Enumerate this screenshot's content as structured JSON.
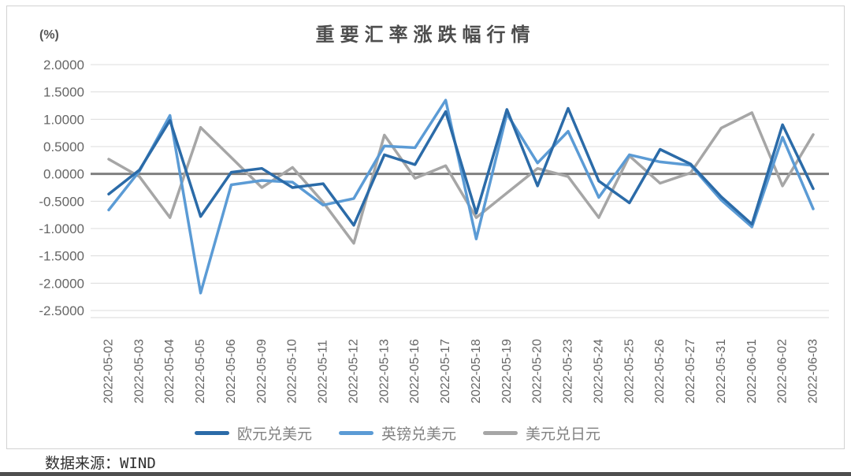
{
  "chart": {
    "title": "重要汇率涨跌幅行情",
    "unit_label": "(%)"
  },
  "footer": {
    "source_text": "数据来源：WIND"
  },
  "chart_data": {
    "type": "line",
    "title": "重要汇率涨跌幅行情",
    "xlabel": "",
    "ylabel": "(%)",
    "ylim": [
      -2.5,
      2.0
    ],
    "ytick_step": 0.5,
    "ytick_labels": [
      "2.0000",
      "1.5000",
      "1.0000",
      "0.5000",
      "0.0000",
      "-0.5000",
      "-1.0000",
      "-1.5000",
      "-2.0000",
      "-2.5000"
    ],
    "grid": true,
    "zero_line": true,
    "legend_position": "bottom",
    "grid_color": "#dcdcdc",
    "axis_line_color": "#d9d9d9",
    "zero_line_color": "#7f7f7f",
    "tick_label_color": "#666666",
    "categories": [
      "2022-05-02",
      "2022-05-03",
      "2022-05-04",
      "2022-05-05",
      "2022-05-06",
      "2022-05-09",
      "2022-05-10",
      "2022-05-11",
      "2022-05-12",
      "2022-05-13",
      "2022-05-16",
      "2022-05-17",
      "2022-05-18",
      "2022-05-19",
      "2022-05-20",
      "2022-05-23",
      "2022-05-24",
      "2022-05-25",
      "2022-05-26",
      "2022-05-27",
      "2022-05-31",
      "2022-06-01",
      "2022-06-02",
      "2022-06-03"
    ],
    "series": [
      {
        "name": "欧元兑美元",
        "color": "#2b6ba8",
        "values": [
          -0.37,
          0.07,
          0.98,
          -0.78,
          0.03,
          0.1,
          -0.25,
          -0.18,
          -0.94,
          0.35,
          0.17,
          1.14,
          -0.72,
          1.18,
          -0.22,
          1.2,
          -0.13,
          -0.53,
          0.45,
          0.18,
          -0.42,
          -0.92,
          0.9,
          -0.27
        ]
      },
      {
        "name": "英镑兑美元",
        "color": "#5b9bd5",
        "values": [
          -0.66,
          0.05,
          1.07,
          -2.18,
          -0.2,
          -0.12,
          -0.15,
          -0.57,
          -0.45,
          0.51,
          0.48,
          1.35,
          -1.19,
          1.1,
          0.2,
          0.78,
          -0.43,
          0.35,
          0.22,
          0.16,
          -0.48,
          -0.97,
          0.67,
          -0.64
        ]
      },
      {
        "name": "美元兑日元",
        "color": "#a6a6a6",
        "values": [
          0.27,
          -0.05,
          -0.8,
          0.85,
          0.3,
          -0.25,
          0.12,
          -0.52,
          -1.27,
          0.71,
          -0.08,
          0.15,
          -0.8,
          -0.35,
          0.1,
          -0.05,
          -0.8,
          0.33,
          -0.17,
          0.02,
          0.84,
          1.12,
          -0.22,
          0.72
        ]
      }
    ]
  }
}
